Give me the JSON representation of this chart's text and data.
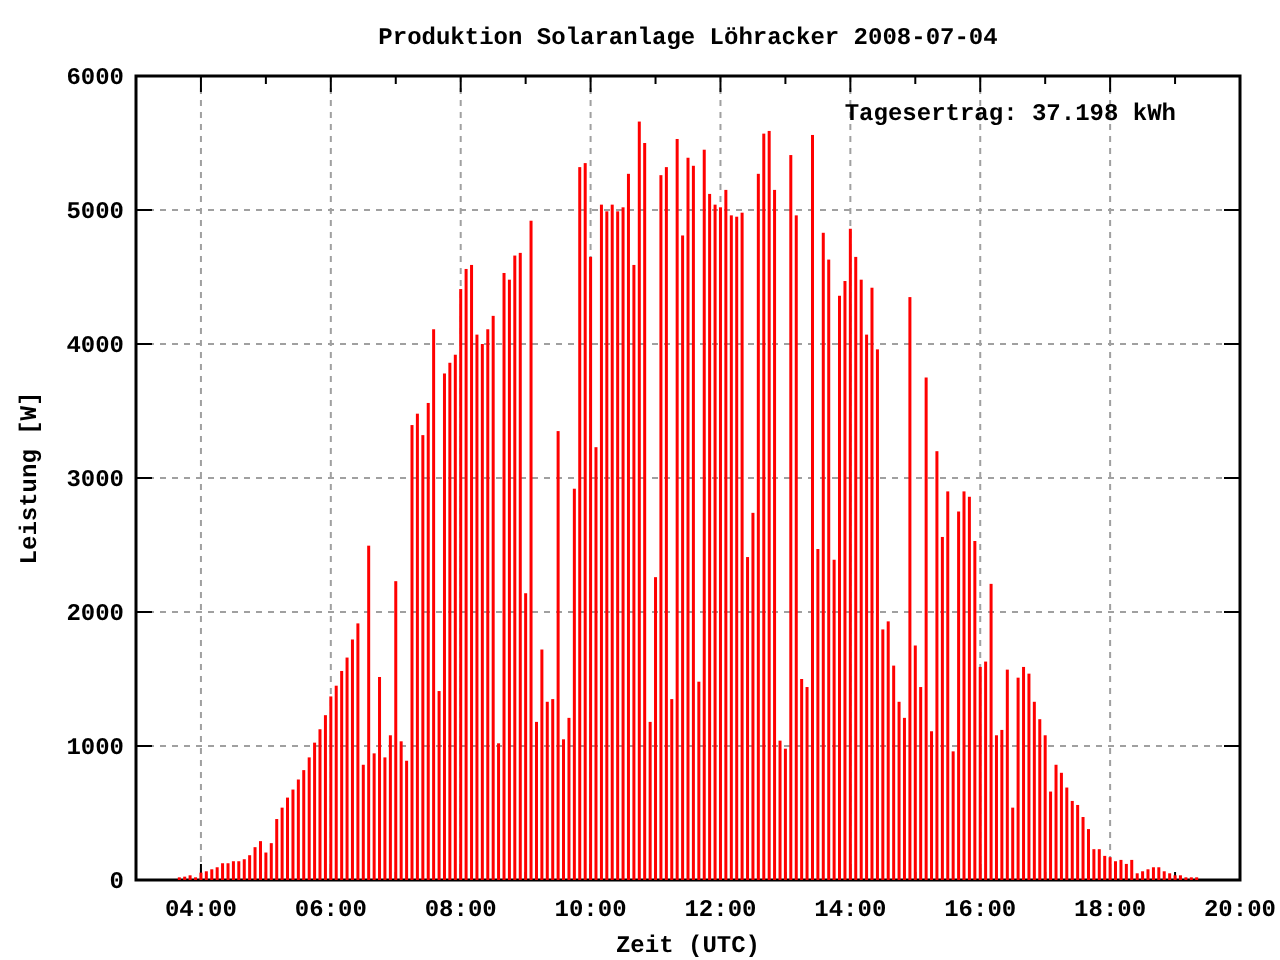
{
  "chart_data": {
    "type": "bar",
    "title": "Produktion Solaranlage Löhracker 2008-07-04",
    "xlabel": "Zeit (UTC)",
    "ylabel": "Leistung [W]",
    "annotations": [
      "Tagesertrag: 37.198 kWh"
    ],
    "x": [
      3.667,
      3.75,
      3.833,
      3.917,
      4,
      4.083,
      4.167,
      4.25,
      4.333,
      4.417,
      4.5,
      4.583,
      4.667,
      4.75,
      4.833,
      4.917,
      5,
      5.083,
      5.167,
      5.25,
      5.333,
      5.417,
      5.5,
      5.583,
      5.667,
      5.75,
      5.833,
      5.917,
      6,
      6.083,
      6.167,
      6.25,
      6.333,
      6.417,
      6.5,
      6.583,
      6.667,
      6.75,
      6.833,
      6.917,
      7,
      7.083,
      7.167,
      7.25,
      7.333,
      7.417,
      7.5,
      7.583,
      7.667,
      7.75,
      7.833,
      7.917,
      8,
      8.083,
      8.167,
      8.25,
      8.333,
      8.417,
      8.5,
      8.583,
      8.667,
      8.75,
      8.833,
      8.917,
      9,
      9.083,
      9.167,
      9.25,
      9.333,
      9.417,
      9.5,
      9.583,
      9.667,
      9.75,
      9.833,
      9.917,
      10,
      10.083,
      10.167,
      10.25,
      10.333,
      10.417,
      10.5,
      10.583,
      10.667,
      10.75,
      10.833,
      10.917,
      11,
      11.083,
      11.167,
      11.25,
      11.333,
      11.417,
      11.5,
      11.583,
      11.667,
      11.75,
      11.833,
      11.917,
      12,
      12.083,
      12.167,
      12.25,
      12.333,
      12.417,
      12.5,
      12.583,
      12.667,
      12.75,
      12.833,
      12.917,
      13,
      13.083,
      13.167,
      13.25,
      13.333,
      13.417,
      13.5,
      13.583,
      13.667,
      13.75,
      13.833,
      13.917,
      14,
      14.083,
      14.167,
      14.25,
      14.333,
      14.417,
      14.5,
      14.583,
      14.667,
      14.75,
      14.833,
      14.917,
      15,
      15.083,
      15.167,
      15.25,
      15.333,
      15.417,
      15.5,
      15.583,
      15.667,
      15.75,
      15.833,
      15.917,
      16,
      16.083,
      16.167,
      16.25,
      16.333,
      16.417,
      16.5,
      16.583,
      16.667,
      16.75,
      16.833,
      16.917,
      17,
      17.083,
      17.167,
      17.25,
      17.333,
      17.417,
      17.5,
      17.583,
      17.667,
      17.75,
      17.833,
      17.917,
      18,
      18.083,
      18.167,
      18.25,
      18.333,
      18.417,
      18.5,
      18.583,
      18.667,
      18.75,
      18.833,
      18.917,
      19,
      19.083,
      19.167,
      19.25,
      19.333
    ],
    "series": [
      {
        "color": "#ff0000",
        "values": [
          20,
          25,
          35,
          20,
          55,
          65,
          80,
          95,
          125,
          125,
          140,
          140,
          155,
          185,
          245,
          290,
          205,
          275,
          455,
          540,
          615,
          675,
          750,
          820,
          915,
          1025,
          1125,
          1230,
          1370,
          1450,
          1560,
          1660,
          1795,
          1915,
          860,
          2495,
          945,
          1515,
          915,
          1080,
          2230,
          1035,
          890,
          3395,
          3480,
          3320,
          3560,
          4110,
          1410,
          3780,
          3860,
          3920,
          4410,
          4560,
          4590,
          4070,
          4000,
          4110,
          4210,
          1020,
          4530,
          4480,
          4660,
          4680,
          2140,
          4920,
          1180,
          1720,
          1330,
          1350,
          3350,
          1050,
          1210,
          2920,
          5320,
          5350,
          4650,
          3230,
          5040,
          4990,
          5040,
          4990,
          5020,
          5270,
          4590,
          5660,
          5500,
          1180,
          2260,
          5260,
          5320,
          1350,
          5530,
          4810,
          5390,
          5330,
          1480,
          5450,
          5120,
          5040,
          5020,
          5150,
          4960,
          4950,
          4980,
          2410,
          2740,
          5270,
          5570,
          5590,
          5150,
          1040,
          980,
          5410,
          4960,
          1500,
          1440,
          5560,
          2470,
          4830,
          4630,
          2390,
          4360,
          4470,
          4860,
          4650,
          4480,
          4070,
          4420,
          3960,
          1870,
          1930,
          1600,
          1330,
          1210,
          4350,
          1750,
          1440,
          3750,
          1110,
          3200,
          2560,
          2900,
          960,
          2750,
          2900,
          2860,
          2530,
          1590,
          1630,
          2210,
          1080,
          1120,
          1570,
          540,
          1510,
          1590,
          1540,
          1330,
          1200,
          1080,
          660,
          860,
          800,
          690,
          590,
          560,
          470,
          380,
          230,
          230,
          180,
          170,
          140,
          150,
          120,
          150,
          50,
          65,
          80,
          95,
          95,
          65,
          50,
          35,
          35,
          20,
          20,
          20
        ]
      }
    ],
    "xlim": [
      3,
      20
    ],
    "xticks": [
      {
        "value": 4,
        "label": "04:00"
      },
      {
        "value": 5,
        "label": null
      },
      {
        "value": 6,
        "label": "06:00"
      },
      {
        "value": 7,
        "label": null
      },
      {
        "value": 8,
        "label": "08:00"
      },
      {
        "value": 9,
        "label": null
      },
      {
        "value": 10,
        "label": "10:00"
      },
      {
        "value": 11,
        "label": null
      },
      {
        "value": 12,
        "label": "12:00"
      },
      {
        "value": 13,
        "label": null
      },
      {
        "value": 14,
        "label": "14:00"
      },
      {
        "value": 15,
        "label": null
      },
      {
        "value": 16,
        "label": "16:00"
      },
      {
        "value": 17,
        "label": null
      },
      {
        "value": 18,
        "label": "18:00"
      },
      {
        "value": 19,
        "label": null
      },
      {
        "value": 20,
        "label": "20:00"
      }
    ],
    "ylim": [
      0,
      6000
    ],
    "yticks": [
      0,
      1000,
      2000,
      3000,
      4000,
      5000,
      6000
    ],
    "grid": true
  }
}
